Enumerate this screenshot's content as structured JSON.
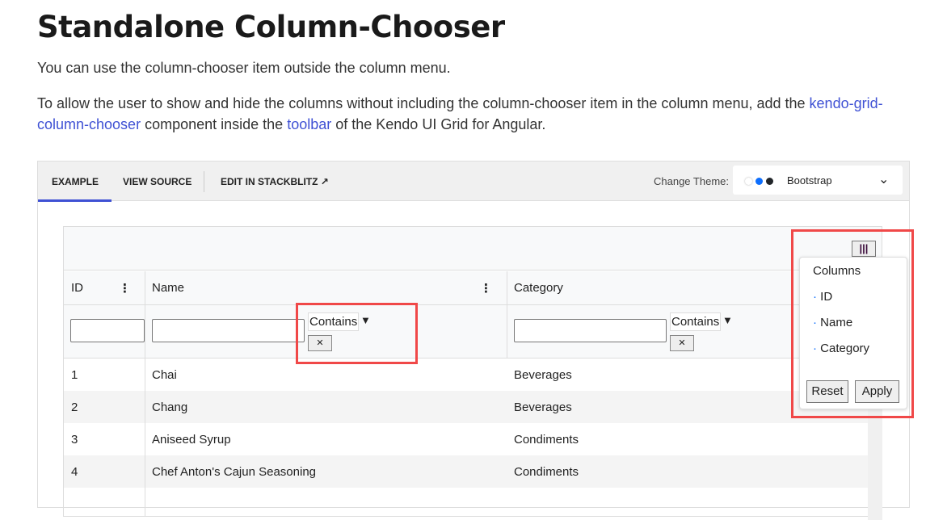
{
  "title": "Standalone Column-Chooser",
  "intro": "You can use the column-chooser item outside the column menu.",
  "para2": {
    "before": "To allow the user to show and hide the columns without including the column-chooser item in the column menu, add the ",
    "link1": "kendo-grid-column-chooser",
    "mid": " component inside the ",
    "link2": "toolbar",
    "after": " of the Kendo UI Grid for Angular."
  },
  "demo": {
    "tabs": [
      "EXAMPLE",
      "VIEW SOURCE",
      "EDIT IN STACKBLITZ"
    ],
    "active_tab": "EXAMPLE",
    "theme_label": "Change Theme:",
    "theme_value": "Bootstrap",
    "theme_dots": [
      "#ffffff",
      "#0d6efd",
      "#212529"
    ]
  },
  "grid": {
    "columns": [
      "ID",
      "Name",
      "Category"
    ],
    "filter_operator": "Contains",
    "rows": [
      [
        "1",
        "Chai",
        "Beverages"
      ],
      [
        "2",
        "Chang",
        "Beverages"
      ],
      [
        "3",
        "Aniseed Syrup",
        "Condiments"
      ],
      [
        "4",
        "Chef Anton's Cajun Seasoning",
        "Condiments"
      ]
    ]
  },
  "chooser": {
    "title": "Columns",
    "items": [
      "ID",
      "Name",
      "Category"
    ],
    "reset": "Reset",
    "apply": "Apply"
  },
  "colors": {
    "link": "#3f51d4",
    "highlight": "#f04848"
  }
}
